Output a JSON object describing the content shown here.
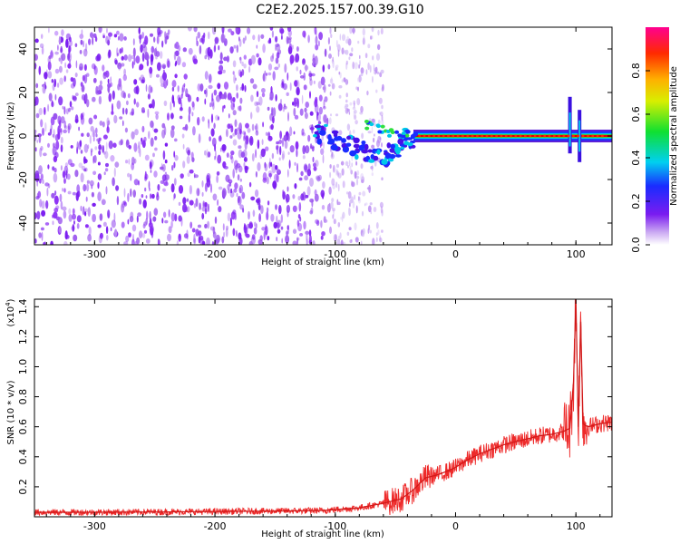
{
  "title": "C2E2.2025.157.00.39.G10",
  "colors": {
    "spectrogram_noise": "#7a1cf0",
    "spectrogram_line": "#e00000",
    "snr_line": "#ee2a2a",
    "frame": "#000000"
  },
  "chart_data": [
    {
      "type": "heatmap",
      "xlabel": "Height of straight line (km)",
      "ylabel": "Frequency (Hz)",
      "xlim": [
        -350,
        130
      ],
      "ylim": [
        -50,
        50
      ],
      "x_ticks": [
        "-300",
        "-200",
        "-100",
        "0",
        "100"
      ],
      "x_tick_values": [
        -300,
        -200,
        -100,
        0,
        100
      ],
      "y_ticks": [
        "-40",
        "-20",
        "0",
        "20",
        "40"
      ],
      "y_tick_values": [
        -40,
        -20,
        0,
        20,
        40
      ],
      "grid": false,
      "features": {
        "dense_noise_x_range": [
          -350,
          -105
        ],
        "sparse_noise_x_range": [
          -105,
          -60
        ],
        "carrier_x_range": [
          -35,
          130
        ],
        "carrier_frequency_hz": 0,
        "doppler_track_x_range": [
          -110,
          -35
        ],
        "bursts_at_x": [
          -70,
          95,
          103
        ]
      },
      "colorbar": {
        "label": "Normalized spectral amplitude",
        "ticks": [
          "0.0",
          "0.2",
          "0.4",
          "0.6",
          "0.8"
        ],
        "tick_values": [
          0.0,
          0.2,
          0.4,
          0.6,
          0.8
        ],
        "range": [
          0,
          1
        ],
        "colormap": "rainbow (white-violet-blue-cyan-green-yellow-orange-red)"
      }
    },
    {
      "type": "line",
      "xlabel": "Height of straight line (km)",
      "ylabel": "SNR (10 * v/v)",
      "y_multiplier": "(x10",
      "y_multiplier_exp": "4",
      "y_multiplier_close": ")",
      "xlim": [
        -350,
        130
      ],
      "ylim": [
        0,
        14500
      ],
      "x_ticks": [
        "-300",
        "-200",
        "-100",
        "0",
        "100"
      ],
      "x_tick_values": [
        -300,
        -200,
        -100,
        0,
        100
      ],
      "y_ticks": [
        "0.2",
        "0.4",
        "0.6",
        "0.8",
        "1.0",
        "1.2",
        "1.4"
      ],
      "y_tick_values": [
        2000,
        4000,
        6000,
        8000,
        10000,
        12000,
        14000
      ],
      "grid": false,
      "series": [
        {
          "x": [
            -350,
            -300,
            -250,
            -200,
            -150,
            -110,
            -80,
            -60,
            -45,
            -35,
            -25,
            -15,
            -5,
            0,
            10,
            20,
            30,
            40,
            50,
            60,
            70,
            80,
            90,
            95,
            98,
            100,
            102,
            104,
            106,
            110,
            120,
            130
          ],
          "values": [
            300,
            300,
            320,
            350,
            380,
            420,
            600,
            900,
            1200,
            1800,
            2600,
            2800,
            3100,
            3300,
            3800,
            4200,
            4500,
            4800,
            5000,
            5200,
            5400,
            5500,
            5700,
            5900,
            9000,
            14500,
            6000,
            13000,
            6200,
            6000,
            6200,
            6300
          ]
        }
      ]
    }
  ]
}
